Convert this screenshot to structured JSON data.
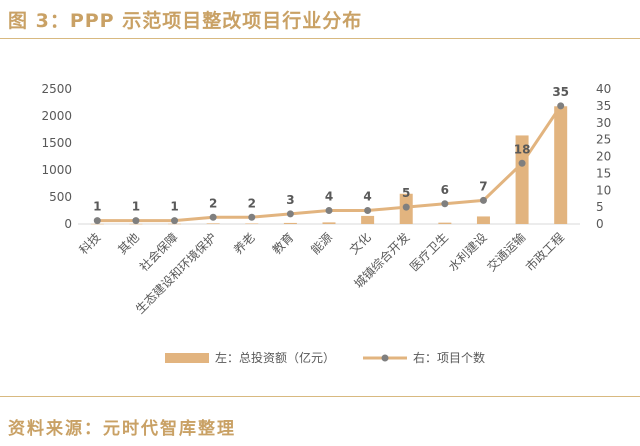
{
  "header": {
    "title": "图 3：PPP 示范项目整改项目行业分布"
  },
  "footer": {
    "source": "资料来源：元时代智库整理"
  },
  "colors": {
    "accent": "#c9a165",
    "bar": "#e2b47f",
    "line": "#e2b47f",
    "marker": "#7f7f7f",
    "text": "#595959"
  },
  "chart_data": {
    "type": "bar",
    "categories": [
      "科技",
      "其他",
      "社会保障",
      "生态建设和环境保护",
      "养老",
      "教育",
      "能源",
      "文化",
      "城镇综合开发",
      "医疗卫生",
      "水利建设",
      "交通运输",
      "市政工程"
    ],
    "series": [
      {
        "name": "左：总投资额（亿元）",
        "type": "bar",
        "axis": "left",
        "values": [
          3,
          3,
          5,
          12,
          10,
          20,
          30,
          150,
          560,
          25,
          140,
          1640,
          2180
        ]
      },
      {
        "name": "右：项目个数",
        "type": "line",
        "axis": "right",
        "values": [
          1,
          1,
          1,
          2,
          2,
          3,
          4,
          4,
          5,
          6,
          7,
          18,
          35
        ],
        "data_labels": [
          "1",
          "1",
          "1",
          "2",
          "2",
          "3",
          "4",
          "4",
          "5",
          "6",
          "7",
          "18",
          "35"
        ]
      }
    ],
    "left_axis": {
      "ylim": [
        0,
        2500
      ],
      "ticks": [
        "0",
        "500",
        "1000",
        "1500",
        "2000",
        "2500"
      ]
    },
    "right_axis": {
      "ylim": [
        0,
        40
      ],
      "ticks": [
        "0",
        "5",
        "10",
        "15",
        "20",
        "25",
        "30",
        "35",
        "40"
      ]
    },
    "grid": false,
    "legend": "bottom"
  }
}
